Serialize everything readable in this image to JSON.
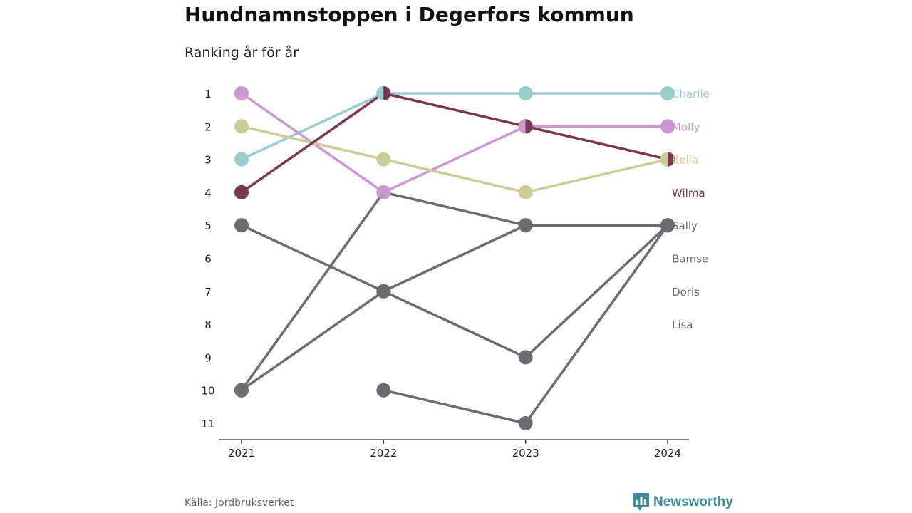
{
  "header": {
    "title": "Hundnamnstoppen i Degerfors kommun",
    "subtitle": "Ranking år för år"
  },
  "footer": {
    "source": "Källa: Jordbruksverket",
    "brand": "Newsworthy"
  },
  "colors": {
    "charlie": "#97cdcc",
    "molly": "#cd97d1",
    "bella": "#cdcc97",
    "wilma": "#7a3850",
    "other": "#6b6b72",
    "axis": "#333333"
  },
  "chart_data": {
    "type": "line",
    "x": [
      "2021",
      "2022",
      "2023",
      "2024"
    ],
    "y_ticks": [
      "1",
      "2",
      "3",
      "4",
      "5",
      "6",
      "7",
      "8",
      "9",
      "10",
      "11"
    ],
    "ylim": [
      1,
      11
    ],
    "y_inverted": true,
    "grid": false,
    "series": [
      {
        "name": "Charlie",
        "color": "#97cdcc",
        "values": [
          3,
          1,
          1,
          1
        ]
      },
      {
        "name": "Molly",
        "color": "#cd97d1",
        "values": [
          1,
          4,
          2,
          2
        ]
      },
      {
        "name": "Bella",
        "color": "#cdcc97",
        "values": [
          2,
          3,
          4,
          3
        ]
      },
      {
        "name": "Wilma",
        "color": "#7a3850",
        "values": [
          4,
          1,
          2,
          3
        ]
      },
      {
        "name": "Sally",
        "color": "#6b6b72",
        "values": [
          5,
          7,
          9,
          5
        ]
      },
      {
        "name": "Bamse",
        "color": "#6b6b72",
        "values": [
          10,
          4,
          5,
          5
        ]
      },
      {
        "name": "Doris",
        "color": "#6b6b72",
        "values": [
          10,
          7,
          5,
          5
        ]
      },
      {
        "name": "Lisa",
        "color": "#6b6b72",
        "values": [
          null,
          10,
          11,
          5
        ]
      }
    ],
    "legend_placement": "right"
  }
}
